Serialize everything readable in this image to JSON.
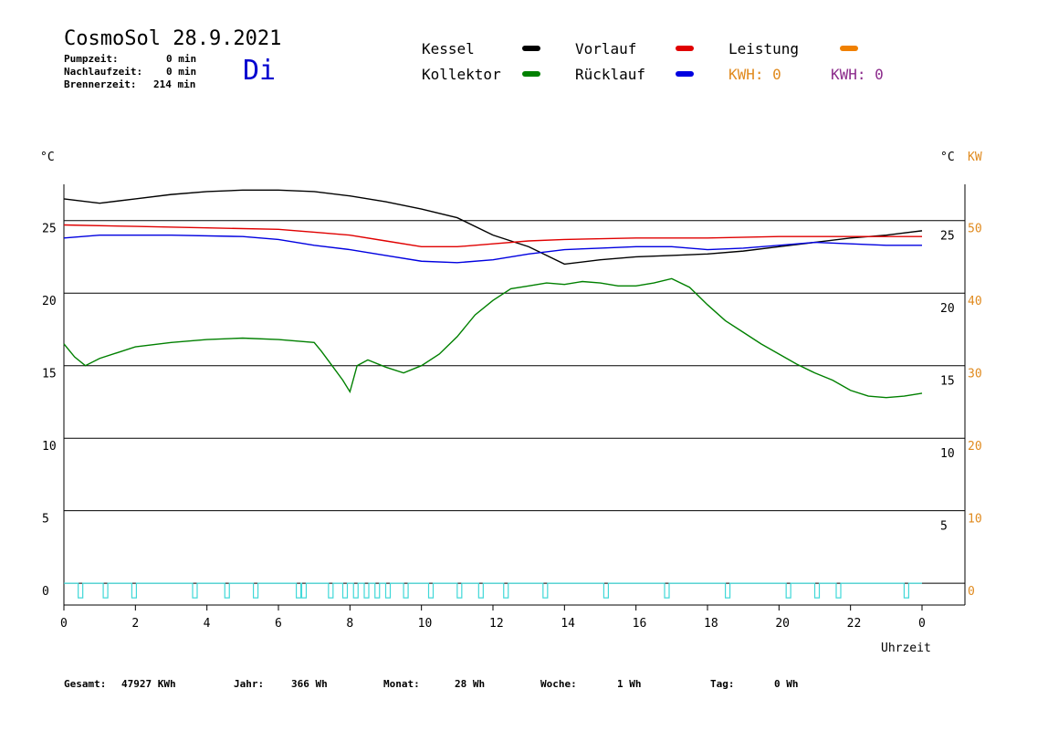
{
  "header": {
    "title": "CosmoSol 28.9.2021",
    "pump_label": "Pumpzeit:",
    "pump_value": "0 min",
    "after_label": "Nachlaufzeit:",
    "after_value": "0 min",
    "burner_label": "Brennerzeit:",
    "burner_value": "214 min",
    "weekday": "Di"
  },
  "legend": {
    "kessel": "Kessel",
    "kollektor": "Kollektor",
    "vorlauf": "Vorlauf",
    "ruecklauf": "Rücklauf",
    "leistung": "Leistung",
    "kwh1": "KWH: 0",
    "kwh2": "KWH: 0",
    "colors": {
      "kessel": "#000000",
      "kollektor": "#008000",
      "vorlauf": "#e00000",
      "ruecklauf": "#0000e0",
      "leistung": "#f08000",
      "kwh1": "#e08a1e",
      "kwh2": "#8b2a8b"
    }
  },
  "axes": {
    "left_unit": "°C",
    "right_unit": "°C",
    "right_unit2": "KW",
    "xlabel": "Uhrzeit"
  },
  "footer": {
    "gesamt_label": "Gesamt:",
    "gesamt_value": "47927 KWh",
    "jahr_label": "Jahr:",
    "jahr_value": "366 Wh",
    "monat_label": "Monat:",
    "monat_value": "28 Wh",
    "woche_label": "Woche:",
    "woche_value": "1 Wh",
    "tag_label": "Tag:",
    "tag_value": "0 Wh"
  },
  "chart_data": {
    "type": "line",
    "xlabel": "Uhrzeit",
    "x_ticks": [
      "0",
      "2",
      "4",
      "6",
      "8",
      "10",
      "12",
      "14",
      "16",
      "18",
      "20",
      "22",
      "0"
    ],
    "xlim": [
      0,
      24
    ],
    "ylim": [
      -1.5,
      27.5
    ],
    "y_ticks_left": [
      0,
      5,
      10,
      15,
      20,
      25
    ],
    "y_ticks_right_c": [
      5,
      10,
      15,
      20,
      25
    ],
    "y_ticks_right_kw": [
      0,
      10,
      20,
      30,
      40,
      50
    ],
    "grid_lines": [
      5,
      10,
      15,
      20,
      25
    ],
    "series": [
      {
        "name": "Kessel",
        "color": "#000000",
        "points": [
          [
            0,
            26.5
          ],
          [
            1,
            26.2
          ],
          [
            2,
            26.5
          ],
          [
            3,
            26.8
          ],
          [
            4,
            27
          ],
          [
            5,
            27.1
          ],
          [
            6,
            27.1
          ],
          [
            7,
            27
          ],
          [
            8,
            26.7
          ],
          [
            9,
            26.3
          ],
          [
            10,
            25.8
          ],
          [
            11,
            25.2
          ],
          [
            12,
            24
          ],
          [
            13,
            23.2
          ],
          [
            14,
            22
          ],
          [
            15,
            22.3
          ],
          [
            16,
            22.5
          ],
          [
            17,
            22.6
          ],
          [
            18,
            22.7
          ],
          [
            19,
            22.9
          ],
          [
            20,
            23.2
          ],
          [
            21,
            23.5
          ],
          [
            22,
            23.8
          ],
          [
            23,
            24
          ],
          [
            24,
            24.3
          ]
        ]
      },
      {
        "name": "Vorlauf",
        "color": "#e00000",
        "points": [
          [
            0,
            24.7
          ],
          [
            2,
            24.6
          ],
          [
            4,
            24.5
          ],
          [
            6,
            24.4
          ],
          [
            7,
            24.2
          ],
          [
            8,
            24
          ],
          [
            9,
            23.6
          ],
          [
            10,
            23.2
          ],
          [
            11,
            23.2
          ],
          [
            12,
            23.4
          ],
          [
            13,
            23.6
          ],
          [
            14,
            23.7
          ],
          [
            16,
            23.8
          ],
          [
            18,
            23.8
          ],
          [
            20,
            23.9
          ],
          [
            22,
            23.9
          ],
          [
            24,
            23.9
          ]
        ]
      },
      {
        "name": "Rücklauf",
        "color": "#0000e0",
        "points": [
          [
            0,
            23.8
          ],
          [
            1,
            24
          ],
          [
            3,
            24
          ],
          [
            5,
            23.9
          ],
          [
            6,
            23.7
          ],
          [
            7,
            23.3
          ],
          [
            8,
            23
          ],
          [
            9,
            22.6
          ],
          [
            10,
            22.2
          ],
          [
            11,
            22.1
          ],
          [
            12,
            22.3
          ],
          [
            13,
            22.7
          ],
          [
            14,
            23
          ],
          [
            15,
            23.1
          ],
          [
            16,
            23.2
          ],
          [
            17,
            23.2
          ],
          [
            18,
            23
          ],
          [
            19,
            23.1
          ],
          [
            20,
            23.3
          ],
          [
            21,
            23.5
          ],
          [
            22,
            23.4
          ],
          [
            23,
            23.3
          ],
          [
            24,
            23.3
          ]
        ]
      },
      {
        "name": "Kollektor",
        "color": "#008000",
        "points": [
          [
            0,
            16.5
          ],
          [
            0.3,
            15.6
          ],
          [
            0.6,
            15
          ],
          [
            1,
            15.5
          ],
          [
            1.5,
            15.9
          ],
          [
            2,
            16.3
          ],
          [
            3,
            16.6
          ],
          [
            4,
            16.8
          ],
          [
            5,
            16.9
          ],
          [
            6,
            16.8
          ],
          [
            7,
            16.6
          ],
          [
            7.2,
            16
          ],
          [
            7.5,
            15
          ],
          [
            7.8,
            14
          ],
          [
            8,
            13.2
          ],
          [
            8.2,
            15
          ],
          [
            8.5,
            15.4
          ],
          [
            9,
            14.9
          ],
          [
            9.5,
            14.5
          ],
          [
            10,
            15
          ],
          [
            10.5,
            15.8
          ],
          [
            11,
            17
          ],
          [
            11.5,
            18.5
          ],
          [
            12,
            19.5
          ],
          [
            12.5,
            20.3
          ],
          [
            13,
            20.5
          ],
          [
            13.5,
            20.7
          ],
          [
            14,
            20.6
          ],
          [
            14.5,
            20.8
          ],
          [
            15,
            20.7
          ],
          [
            15.5,
            20.5
          ],
          [
            16,
            20.5
          ],
          [
            16.5,
            20.7
          ],
          [
            17,
            21
          ],
          [
            17.5,
            20.4
          ],
          [
            18,
            19.2
          ],
          [
            18.5,
            18.1
          ],
          [
            19,
            17.3
          ],
          [
            19.5,
            16.5
          ],
          [
            20,
            15.8
          ],
          [
            20.5,
            15.1
          ],
          [
            21,
            14.5
          ],
          [
            21.5,
            14
          ],
          [
            22,
            13.3
          ],
          [
            22.5,
            12.9
          ],
          [
            23,
            12.8
          ],
          [
            23.5,
            12.9
          ],
          [
            24,
            13.1
          ]
        ]
      }
    ]
  }
}
